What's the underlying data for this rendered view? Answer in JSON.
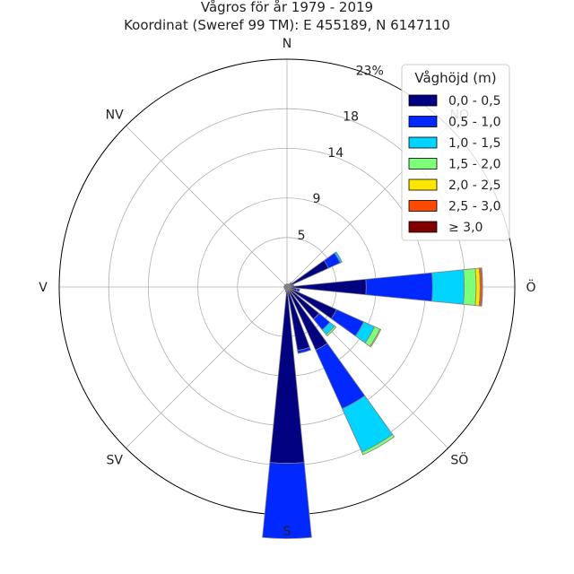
{
  "chart_data": {
    "type": "windrose",
    "title": "Vågros för år 1979 - 2019",
    "subtitle": "Koordinat (Sweref 99 TM): E 455189, N 6147110",
    "directions": [
      {
        "angle": 0,
        "label": "N"
      },
      {
        "angle": 45,
        "label": "NO"
      },
      {
        "angle": 90,
        "label": "Ö"
      },
      {
        "angle": 135,
        "label": "SÖ"
      },
      {
        "angle": 180,
        "label": "S"
      },
      {
        "angle": 225,
        "label": "SV"
      },
      {
        "angle": 270,
        "label": "V"
      },
      {
        "angle": 315,
        "label": "NV"
      }
    ],
    "radial_ticks": [
      {
        "value": 5,
        "label": "5"
      },
      {
        "value": 9,
        "label": "9"
      },
      {
        "value": 14,
        "label": "14"
      },
      {
        "value": 18,
        "label": "18"
      },
      {
        "value": 23,
        "label": "23%"
      }
    ],
    "rmax": 23,
    "legend": {
      "title": "Våghöjd (m)",
      "placement": "top-right",
      "entries": [
        {
          "label": "0,0 - 0,5",
          "color": "#000080"
        },
        {
          "label": "0,5 - 1,0",
          "color": "#0028ff"
        },
        {
          "label": "1,0 - 1,5",
          "color": "#00d4ff"
        },
        {
          "label": "1,5 - 2,0",
          "color": "#7dff7a"
        },
        {
          "label": "2,0 - 2,5",
          "color": "#ffe600"
        },
        {
          "label": "2,5 - 3,0",
          "color": "#ff4a00"
        },
        {
          "label": "≥ 3,0",
          "color": "#800000"
        }
      ]
    },
    "sectors": [
      {
        "direction": 0,
        "values": [
          0.3,
          0.0,
          0.0,
          0.0,
          0.0,
          0.0,
          0.0
        ]
      },
      {
        "direction": 15,
        "values": [
          0.3,
          0.0,
          0.0,
          0.0,
          0.0,
          0.0,
          0.0
        ]
      },
      {
        "direction": 30,
        "values": [
          0.3,
          0.05,
          0.0,
          0.0,
          0.0,
          0.0,
          0.0
        ]
      },
      {
        "direction": 45,
        "values": [
          0.5,
          0.1,
          0.0,
          0.0,
          0.0,
          0.0,
          0.0
        ]
      },
      {
        "direction": 60,
        "values": [
          4.6,
          1.3,
          0.2,
          0.0,
          0.0,
          0.0,
          0.0
        ]
      },
      {
        "direction": 75,
        "values": [
          0.6,
          0.1,
          0.0,
          0.0,
          0.0,
          0.0,
          0.0
        ]
      },
      {
        "direction": 90,
        "values": [
          8.0,
          6.7,
          3.2,
          1.2,
          0.4,
          0.2,
          0.05
        ]
      },
      {
        "direction": 105,
        "values": [
          1.0,
          0.3,
          0.0,
          0.0,
          0.0,
          0.0,
          0.0
        ]
      },
      {
        "direction": 120,
        "values": [
          5.5,
          3.0,
          1.2,
          0.6,
          0.1,
          0.0,
          0.0
        ]
      },
      {
        "direction": 135,
        "values": [
          4.2,
          1.4,
          0.6,
          0.2,
          0.0,
          0.0,
          0.0
        ]
      },
      {
        "direction": 150,
        "values": [
          7.0,
          6.5,
          4.8,
          0.3,
          0.0,
          0.0,
          0.0
        ]
      },
      {
        "direction": 165,
        "values": [
          6.5,
          0.3,
          0.0,
          0.0,
          0.0,
          0.0,
          0.0
        ]
      },
      {
        "direction": 180,
        "values": [
          17.8,
          7.6,
          0.0,
          0.0,
          0.0,
          0.0,
          0.0
        ]
      },
      {
        "direction": 195,
        "values": [
          0.5,
          0.0,
          0.0,
          0.0,
          0.0,
          0.0,
          0.0
        ]
      },
      {
        "direction": 210,
        "values": [
          0.3,
          0.0,
          0.0,
          0.0,
          0.0,
          0.0,
          0.0
        ]
      },
      {
        "direction": 225,
        "values": [
          0.3,
          0.0,
          0.0,
          0.0,
          0.0,
          0.0,
          0.0
        ]
      },
      {
        "direction": 240,
        "values": [
          0.3,
          0.0,
          0.0,
          0.0,
          0.0,
          0.0,
          0.0
        ]
      },
      {
        "direction": 255,
        "values": [
          0.3,
          0.0,
          0.0,
          0.0,
          0.0,
          0.0,
          0.0
        ]
      },
      {
        "direction": 270,
        "values": [
          0.3,
          0.0,
          0.0,
          0.0,
          0.0,
          0.0,
          0.0
        ]
      },
      {
        "direction": 285,
        "values": [
          0.3,
          0.0,
          0.0,
          0.0,
          0.0,
          0.0,
          0.0
        ]
      },
      {
        "direction": 300,
        "values": [
          0.3,
          0.0,
          0.0,
          0.0,
          0.0,
          0.0,
          0.0
        ]
      },
      {
        "direction": 315,
        "values": [
          0.3,
          0.0,
          0.0,
          0.0,
          0.0,
          0.0,
          0.0
        ]
      },
      {
        "direction": 330,
        "values": [
          0.3,
          0.0,
          0.0,
          0.0,
          0.0,
          0.0,
          0.0
        ]
      },
      {
        "direction": 345,
        "values": [
          0.3,
          0.0,
          0.0,
          0.0,
          0.0,
          0.0,
          0.0
        ]
      }
    ]
  }
}
